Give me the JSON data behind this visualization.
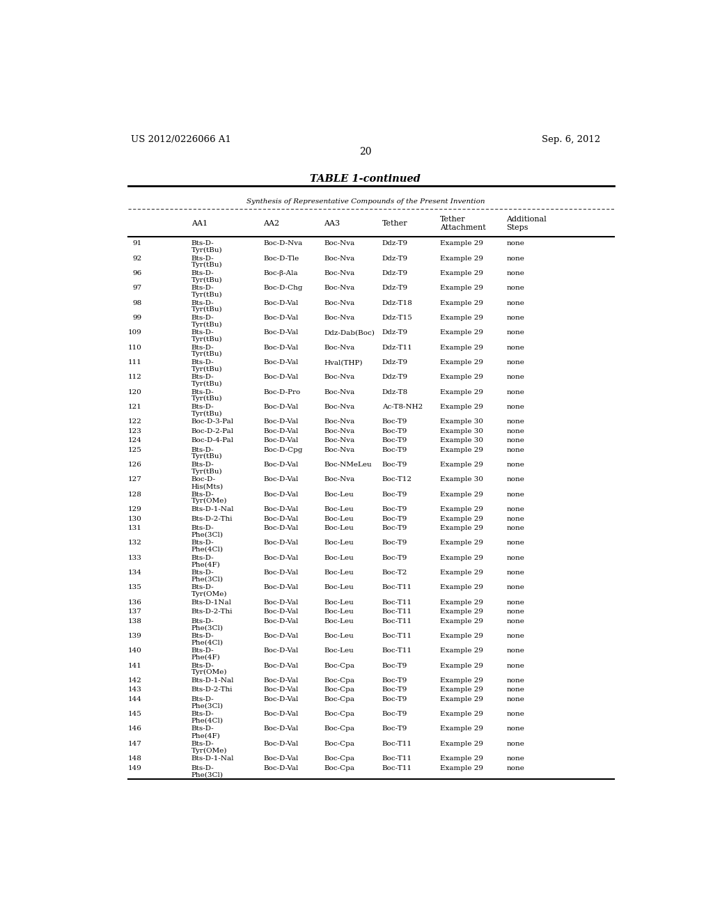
{
  "header_left": "US 2012/0226066 A1",
  "header_right": "Sep. 6, 2012",
  "page_number": "20",
  "table_title": "TABLE 1-continued",
  "table_subtitle": "Synthesis of Representative Compounds of the Present Invention",
  "rows": [
    [
      "91",
      "Bts-D-\nTyr(tBu)",
      "Boc-D-Nva",
      "Boc-Nva",
      "Ddz-T9",
      "Example 29",
      "none"
    ],
    [
      "92",
      "Bts-D-\nTyr(tBu)",
      "Boc-D-Tle",
      "Boc-Nva",
      "Ddz-T9",
      "Example 29",
      "none"
    ],
    [
      "96",
      "Bts-D-\nTyr(tBu)",
      "Boc-β-Ala",
      "Boc-Nva",
      "Ddz-T9",
      "Example 29",
      "none"
    ],
    [
      "97",
      "Bts-D-\nTyr(tBu)",
      "Boc-D-Chg",
      "Boc-Nva",
      "Ddz-T9",
      "Example 29",
      "none"
    ],
    [
      "98",
      "Bts-D-\nTyr(tBu)",
      "Boc-D-Val",
      "Boc-Nva",
      "Ddz-T18",
      "Example 29",
      "none"
    ],
    [
      "99",
      "Bts-D-\nTyr(tBu)",
      "Boc-D-Val",
      "Boc-Nva",
      "Ddz-T15",
      "Example 29",
      "none"
    ],
    [
      "109",
      "Bts-D-\nTyr(tBu)",
      "Boc-D-Val",
      "Ddz-Dab(Boc)",
      "Ddz-T9",
      "Example 29",
      "none"
    ],
    [
      "110",
      "Bts-D-\nTyr(tBu)",
      "Boc-D-Val",
      "Boc-Nva",
      "Ddz-T11",
      "Example 29",
      "none"
    ],
    [
      "111",
      "Bts-D-\nTyr(tBu)",
      "Boc-D-Val",
      "Hval(THP)",
      "Ddz-T9",
      "Example 29",
      "none"
    ],
    [
      "112",
      "Bts-D-\nTyr(tBu)",
      "Boc-D-Val",
      "Boc-Nva",
      "Ddz-T9",
      "Example 29",
      "none"
    ],
    [
      "120",
      "Bts-D-\nTyr(tBu)",
      "Boc-D-Pro",
      "Boc-Nva",
      "Ddz-T8",
      "Example 29",
      "none"
    ],
    [
      "121",
      "Bts-D-\nTyr(tBu)",
      "Boc-D-Val",
      "Boc-Nva",
      "Ac-T8-NH2",
      "Example 29",
      "none"
    ],
    [
      "122",
      "Boc-D-3-Pal",
      "Boc-D-Val",
      "Boc-Nva",
      "Boc-T9",
      "Example 30",
      "none"
    ],
    [
      "123",
      "Boc-D-2-Pal",
      "Boc-D-Val",
      "Boc-Nva",
      "Boc-T9",
      "Example 30",
      "none"
    ],
    [
      "124",
      "Boc-D-4-Pal",
      "Boc-D-Val",
      "Boc-Nva",
      "Boc-T9",
      "Example 30",
      "none"
    ],
    [
      "125",
      "Bts-D-\nTyr(tBu)",
      "Boc-D-Cpg",
      "Boc-Nva",
      "Boc-T9",
      "Example 29",
      "none"
    ],
    [
      "126",
      "Bts-D-\nTyr(tBu)",
      "Boc-D-Val",
      "Boc-NMeLeu",
      "Boc-T9",
      "Example 29",
      "none"
    ],
    [
      "127",
      "Boc-D-\nHis(Mts)",
      "Boc-D-Val",
      "Boc-Nva",
      "Boc-T12",
      "Example 30",
      "none"
    ],
    [
      "128",
      "Bts-D-\nTyr(OMe)",
      "Boc-D-Val",
      "Boc-Leu",
      "Boc-T9",
      "Example 29",
      "none"
    ],
    [
      "129",
      "Bts-D-1-Nal",
      "Boc-D-Val",
      "Boc-Leu",
      "Boc-T9",
      "Example 29",
      "none"
    ],
    [
      "130",
      "Bts-D-2-Thi",
      "Boc-D-Val",
      "Boc-Leu",
      "Boc-T9",
      "Example 29",
      "none"
    ],
    [
      "131",
      "Bts-D-\nPhe(3Cl)",
      "Boc-D-Val",
      "Boc-Leu",
      "Boc-T9",
      "Example 29",
      "none"
    ],
    [
      "132",
      "Bts-D-\nPhe(4Cl)",
      "Boc-D-Val",
      "Boc-Leu",
      "Boc-T9",
      "Example 29",
      "none"
    ],
    [
      "133",
      "Bts-D-\nPhe(4F)",
      "Boc-D-Val",
      "Boc-Leu",
      "Boc-T9",
      "Example 29",
      "none"
    ],
    [
      "134",
      "Bts-D-\nPhe(3Cl)",
      "Boc-D-Val",
      "Boc-Leu",
      "Boc-T2",
      "Example 29",
      "none"
    ],
    [
      "135",
      "Bts-D-\nTyr(OMe)",
      "Boc-D-Val",
      "Boc-Leu",
      "Boc-T11",
      "Example 29",
      "none"
    ],
    [
      "136",
      "Bts-D-1Nal",
      "Boc-D-Val",
      "Boc-Leu",
      "Boc-T11",
      "Example 29",
      "none"
    ],
    [
      "137",
      "Bts-D-2-Thi",
      "Boc-D-Val",
      "Boc-Leu",
      "Boc-T11",
      "Example 29",
      "none"
    ],
    [
      "138",
      "Bts-D-\nPhe(3Cl)",
      "Boc-D-Val",
      "Boc-Leu",
      "Boc-T11",
      "Example 29",
      "none"
    ],
    [
      "139",
      "Bts-D-\nPhe(4Cl)",
      "Boc-D-Val",
      "Boc-Leu",
      "Boc-T11",
      "Example 29",
      "none"
    ],
    [
      "140",
      "Bts-D-\nPhe(4F)",
      "Boc-D-Val",
      "Boc-Leu",
      "Boc-T11",
      "Example 29",
      "none"
    ],
    [
      "141",
      "Bts-D-\nTyr(OMe)",
      "Boc-D-Val",
      "Boc-Cpa",
      "Boc-T9",
      "Example 29",
      "none"
    ],
    [
      "142",
      "Bts-D-1-Nal",
      "Boc-D-Val",
      "Boc-Cpa",
      "Boc-T9",
      "Example 29",
      "none"
    ],
    [
      "143",
      "Bts-D-2-Thi",
      "Boc-D-Val",
      "Boc-Cpa",
      "Boc-T9",
      "Example 29",
      "none"
    ],
    [
      "144",
      "Bts-D-\nPhe(3Cl)",
      "Boc-D-Val",
      "Boc-Cpa",
      "Boc-T9",
      "Example 29",
      "none"
    ],
    [
      "145",
      "Bts-D-\nPhe(4Cl)",
      "Boc-D-Val",
      "Boc-Cpa",
      "Boc-T9",
      "Example 29",
      "none"
    ],
    [
      "146",
      "Bts-D-\nPhe(4F)",
      "Boc-D-Val",
      "Boc-Cpa",
      "Boc-T9",
      "Example 29",
      "none"
    ],
    [
      "147",
      "Bts-D-\nTyr(OMe)",
      "Boc-D-Val",
      "Boc-Cpa",
      "Boc-T11",
      "Example 29",
      "none"
    ],
    [
      "148",
      "Bts-D-1-Nal",
      "Boc-D-Val",
      "Boc-Cpa",
      "Boc-T11",
      "Example 29",
      "none"
    ],
    [
      "149",
      "Bts-D-\nPhe(3Cl)",
      "Boc-D-Val",
      "Boc-Cpa",
      "Boc-T11",
      "Example 29",
      "none"
    ]
  ]
}
